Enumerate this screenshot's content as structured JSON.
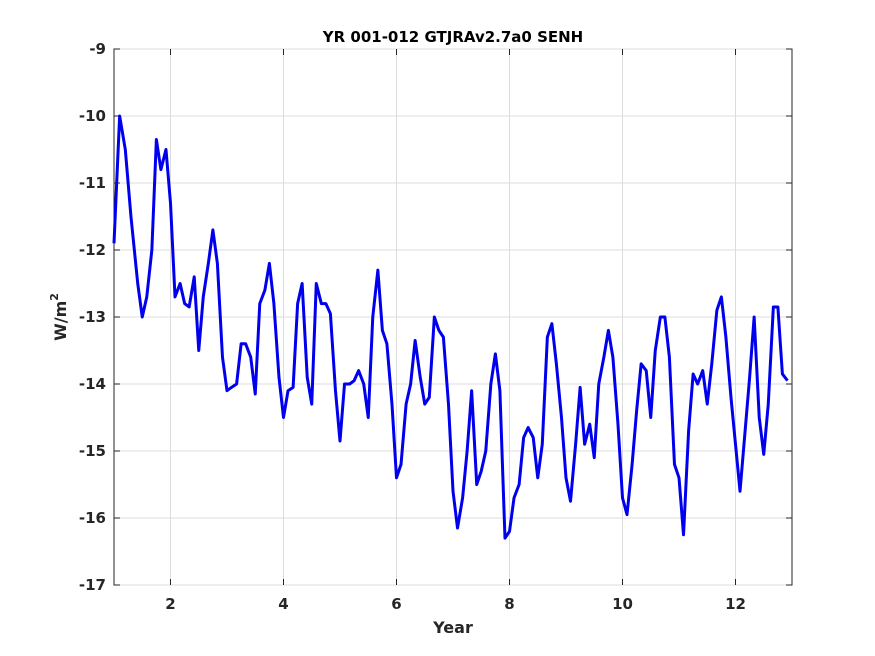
{
  "chart_data": {
    "type": "line",
    "title": "YR 001-012 GTJRAv2.7a0 SENH",
    "xlabel": "Year",
    "ylabel": "W/m",
    "ylabel_superscript": "2",
    "xlim": [
      1,
      13
    ],
    "ylim": [
      -17,
      -9
    ],
    "x_ticks": [
      2,
      4,
      6,
      8,
      10,
      12
    ],
    "y_ticks": [
      -17,
      -16,
      -15,
      -14,
      -13,
      -12,
      -11,
      -10,
      -9
    ],
    "x_tick_labels": [
      "2",
      "4",
      "6",
      "8",
      "10",
      "12"
    ],
    "y_tick_labels": [
      "-17",
      "-16",
      "-15",
      "-14",
      "-13",
      "-12",
      "-11",
      "-10",
      "-9"
    ],
    "grid": true,
    "line_color": "#0000ee",
    "series": [
      {
        "x": [
          1.0,
          1.1,
          1.2,
          1.3,
          1.42,
          1.5,
          1.58,
          1.67,
          1.75,
          1.83,
          1.92,
          2.0,
          2.08,
          2.17,
          2.25,
          2.33,
          2.42,
          2.5,
          2.58,
          2.67,
          2.75,
          2.83,
          2.92,
          3.0,
          3.08,
          3.17,
          3.25,
          3.33,
          3.42,
          3.5,
          3.58,
          3.67,
          3.75,
          3.83,
          3.92,
          4.0,
          4.08,
          4.17,
          4.25,
          4.33,
          4.42,
          4.5,
          4.58,
          4.67,
          4.75,
          4.83,
          4.92,
          5.0,
          5.08,
          5.17,
          5.25,
          5.33,
          5.42,
          5.5,
          5.58,
          5.67,
          5.75,
          5.83,
          5.92,
          6.0,
          6.08,
          6.17,
          6.25,
          6.33,
          6.42,
          6.5,
          6.58,
          6.67,
          6.75,
          6.83,
          6.92,
          7.0,
          7.08,
          7.17,
          7.25,
          7.33,
          7.42,
          7.5,
          7.58,
          7.67,
          7.75,
          7.83,
          7.92,
          8.0,
          8.08,
          8.17,
          8.25,
          8.33,
          8.42,
          8.5,
          8.58,
          8.67,
          8.75,
          8.83,
          8.92,
          9.0,
          9.08,
          9.17,
          9.25,
          9.33,
          9.42,
          9.5,
          9.58,
          9.67,
          9.75,
          9.83,
          9.92,
          10.0,
          10.08,
          10.17,
          10.25,
          10.33,
          10.42,
          10.5,
          10.58,
          10.67,
          10.75,
          10.83,
          10.92,
          11.0,
          11.08,
          11.17,
          11.25,
          11.33,
          11.42,
          11.5,
          11.58,
          11.67,
          11.75,
          11.83,
          11.92,
          12.0,
          12.08,
          12.17,
          12.25,
          12.33,
          12.42,
          12.5,
          12.58,
          12.67,
          12.75,
          12.83,
          12.92
        ],
        "y": [
          -11.9,
          -10.0,
          -10.5,
          -11.5,
          -12.5,
          -13.0,
          -12.7,
          -12.0,
          -10.35,
          -10.8,
          -10.5,
          -11.3,
          -12.7,
          -12.5,
          -12.8,
          -12.85,
          -12.4,
          -13.5,
          -12.7,
          -12.2,
          -11.7,
          -12.2,
          -13.6,
          -14.1,
          -14.05,
          -14.0,
          -13.4,
          -13.4,
          -13.6,
          -14.15,
          -12.8,
          -12.6,
          -12.2,
          -12.8,
          -13.9,
          -14.5,
          -14.1,
          -14.05,
          -12.8,
          -12.5,
          -13.9,
          -14.3,
          -12.5,
          -12.8,
          -12.8,
          -12.95,
          -14.1,
          -14.85,
          -14.0,
          -14.0,
          -13.95,
          -13.8,
          -14.0,
          -14.5,
          -13.0,
          -12.3,
          -13.2,
          -13.4,
          -14.3,
          -15.4,
          -15.2,
          -14.3,
          -14.0,
          -13.35,
          -13.9,
          -14.3,
          -14.2,
          -13.0,
          -13.2,
          -13.3,
          -14.3,
          -15.6,
          -16.15,
          -15.7,
          -15.0,
          -14.1,
          -15.5,
          -15.3,
          -15.0,
          -14.0,
          -13.55,
          -14.1,
          -16.3,
          -16.2,
          -15.7,
          -15.5,
          -14.8,
          -14.65,
          -14.8,
          -15.4,
          -14.9,
          -13.3,
          -13.1,
          -13.7,
          -14.5,
          -15.4,
          -15.75,
          -14.9,
          -14.05,
          -14.9,
          -14.6,
          -15.1,
          -14.0,
          -13.6,
          -13.2,
          -13.6,
          -14.6,
          -15.7,
          -15.95,
          -15.2,
          -14.4,
          -13.7,
          -13.8,
          -14.5,
          -13.5,
          -13.0,
          -13.0,
          -13.6,
          -15.2,
          -15.4,
          -16.25,
          -14.7,
          -13.85,
          -14.0,
          -13.8,
          -14.3,
          -13.7,
          -12.9,
          -12.7,
          -13.3,
          -14.2,
          -14.9,
          -15.6,
          -14.7,
          -13.9,
          -13.0,
          -14.5,
          -15.05,
          -14.3,
          -12.85,
          -12.85,
          -13.85,
          -13.95
        ]
      }
    ]
  }
}
